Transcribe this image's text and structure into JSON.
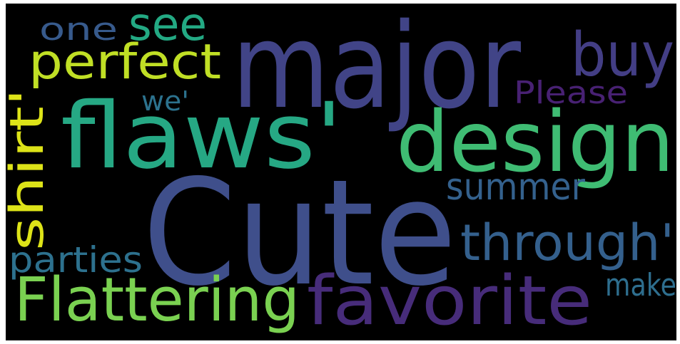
{
  "words": [
    {
      "text": "Cute",
      "color": "#3f4f8b"
    },
    {
      "text": "major",
      "color": "#414487"
    },
    {
      "text": "flaws'",
      "color": "#26a884"
    },
    {
      "text": "design",
      "color": "#3fbc73"
    },
    {
      "text": "buy",
      "color": "#433e85"
    },
    {
      "text": "see",
      "color": "#23a983"
    },
    {
      "text": "one",
      "color": "#375a8c"
    },
    {
      "text": "perfect",
      "color": "#c0df25"
    },
    {
      "text": "we'",
      "color": "#2c728e"
    },
    {
      "text": "Please",
      "color": "#482173"
    },
    {
      "text": "shirt'",
      "color": "#dde318"
    },
    {
      "text": "summer",
      "color": "#34618d"
    },
    {
      "text": "through'",
      "color": "#34608d"
    },
    {
      "text": "parties",
      "color": "#2d718e"
    },
    {
      "text": "make",
      "color": "#2e6e8e"
    },
    {
      "text": "Flattering",
      "color": "#7ad151"
    },
    {
      "text": "favorite",
      "color": "#472c7a"
    }
  ]
}
